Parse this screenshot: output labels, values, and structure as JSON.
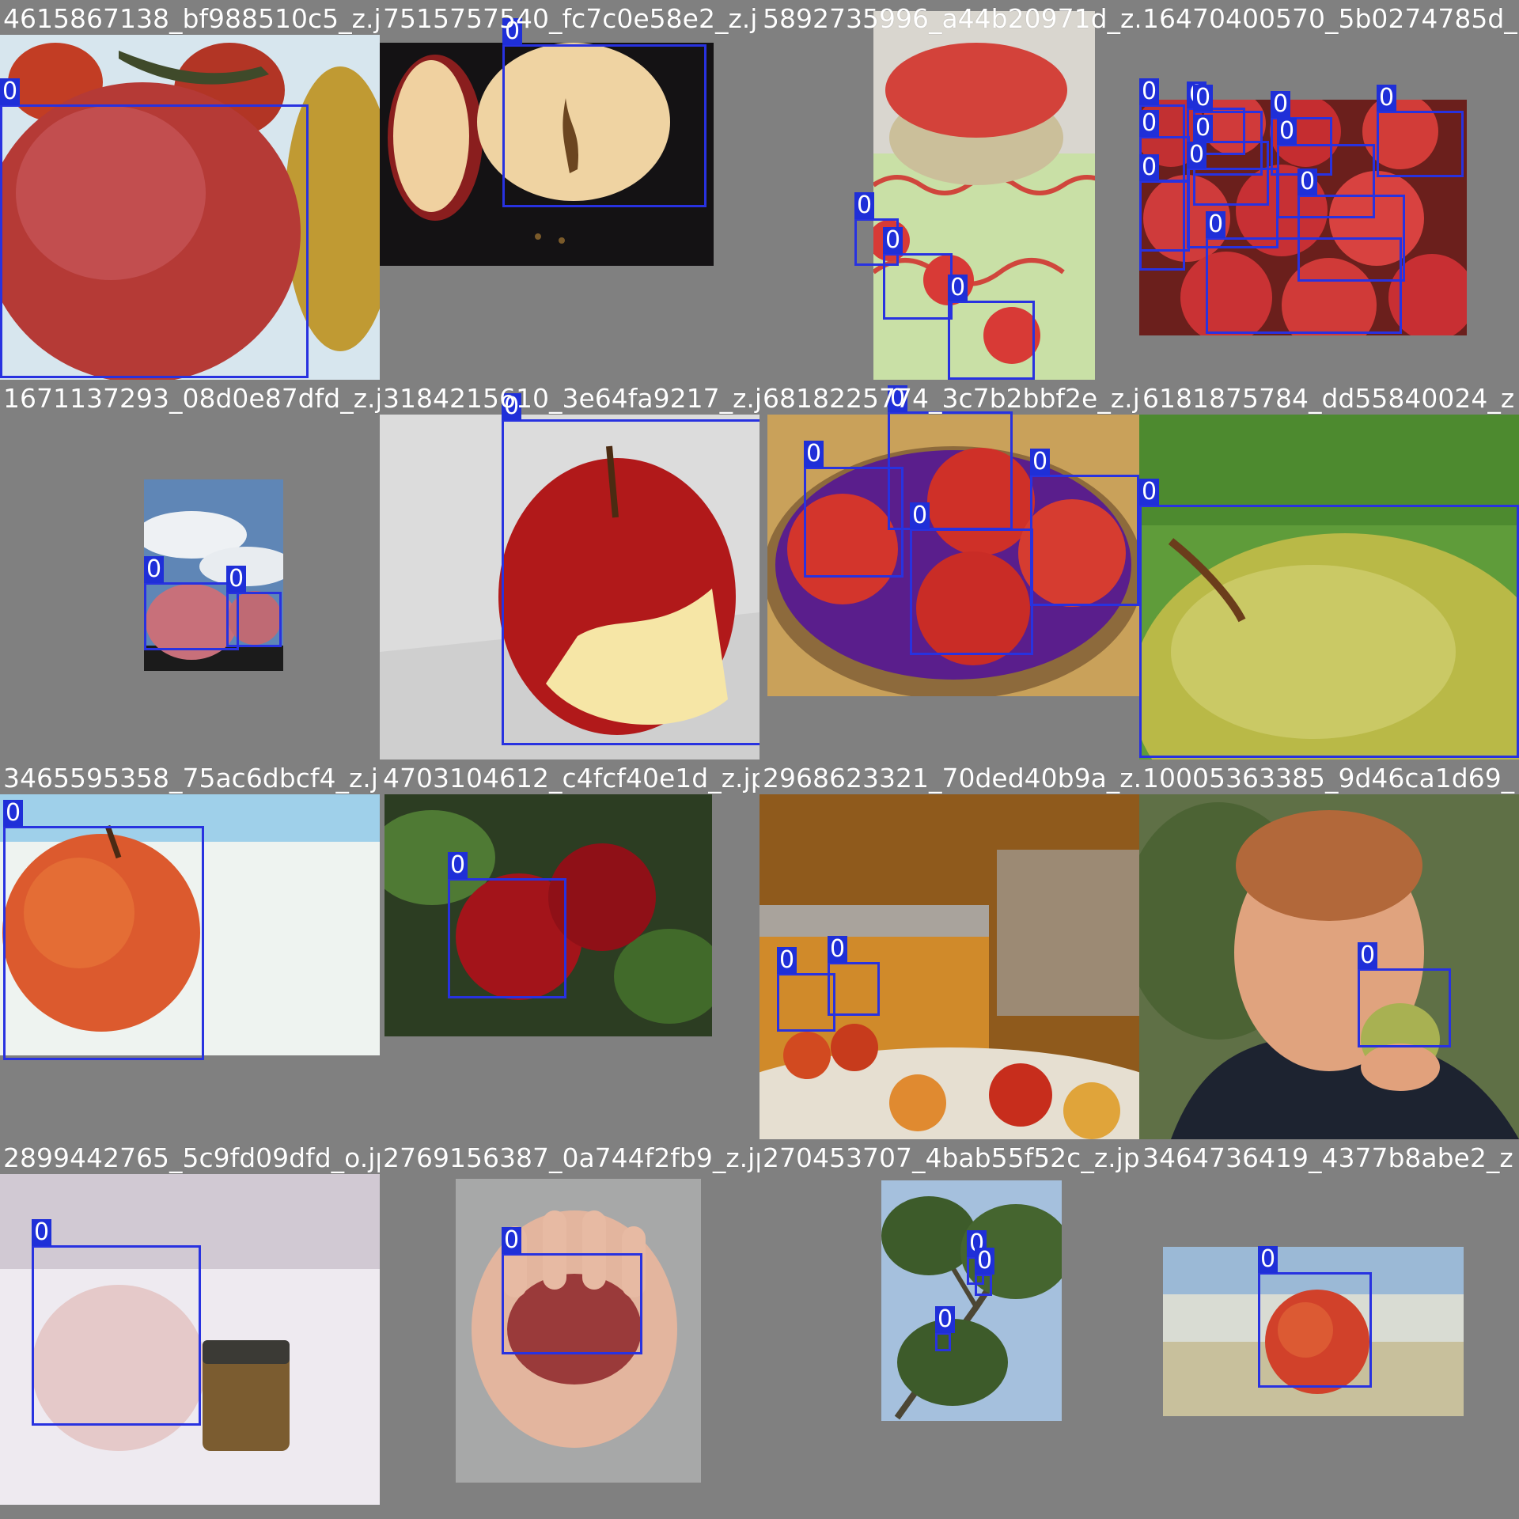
{
  "label_color": "#2832e0",
  "class_label": "0",
  "tiles": [
    {
      "filename": "4615867138_bf988510c5_z.jpg",
      "boxes": [
        {
          "label": "0"
        }
      ]
    },
    {
      "filename": "7515757540_fc7c0e58e2_z.jpg",
      "boxes": [
        {
          "label": "0"
        }
      ]
    },
    {
      "filename": "5892735996_a44b20971d_z.jpg",
      "boxes": [
        {
          "label": "0"
        },
        {
          "label": "0"
        },
        {
          "label": "0"
        }
      ]
    },
    {
      "filename": "16470400570_5b0274785d_",
      "boxes": [
        {
          "label": "0"
        },
        {
          "label": "0"
        },
        {
          "label": "0"
        },
        {
          "label": "0"
        },
        {
          "label": "0"
        },
        {
          "label": "0"
        },
        {
          "label": "0"
        },
        {
          "label": "0"
        },
        {
          "label": "0"
        },
        {
          "label": "0"
        },
        {
          "label": "0"
        },
        {
          "label": "0"
        }
      ]
    },
    {
      "filename": "1671137293_08d0e87dfd_z.jpg",
      "boxes": [
        {
          "label": "0"
        },
        {
          "label": "0"
        }
      ]
    },
    {
      "filename": "3184215610_3e64fa9217_z.jpg",
      "boxes": [
        {
          "label": "0"
        }
      ]
    },
    {
      "filename": "6818225774_3c7b2bbf2e_z.jpg",
      "boxes": [
        {
          "label": "0"
        },
        {
          "label": "0"
        },
        {
          "label": "0"
        },
        {
          "label": "0"
        }
      ]
    },
    {
      "filename": "6181875784_dd55840024_z",
      "boxes": [
        {
          "label": "0"
        }
      ]
    },
    {
      "filename": "3465595358_75ac6dbcf4_z.jpg",
      "boxes": [
        {
          "label": "0"
        }
      ]
    },
    {
      "filename": "4703104612_c4fcf40e1d_z.jpg",
      "boxes": [
        {
          "label": "0"
        }
      ]
    },
    {
      "filename": "2968623321_70ded40b9a_z.jpg",
      "boxes": [
        {
          "label": "0"
        },
        {
          "label": "0"
        }
      ]
    },
    {
      "filename": "10005363385_9d46ca1d69_",
      "boxes": [
        {
          "label": "0"
        }
      ]
    },
    {
      "filename": "2899442765_5c9fd09dfd_o.jpg",
      "boxes": [
        {
          "label": "0"
        }
      ]
    },
    {
      "filename": "2769156387_0a744f2fb9_z.jpg",
      "boxes": [
        {
          "label": "0"
        }
      ]
    },
    {
      "filename": "270453707_4bab55f52c_z.jpg",
      "boxes": [
        {
          "label": "0"
        },
        {
          "label": "0"
        },
        {
          "label": "0"
        }
      ]
    },
    {
      "filename": "3464736419_4377b8abe2_z",
      "boxes": [
        {
          "label": "0"
        }
      ]
    }
  ]
}
